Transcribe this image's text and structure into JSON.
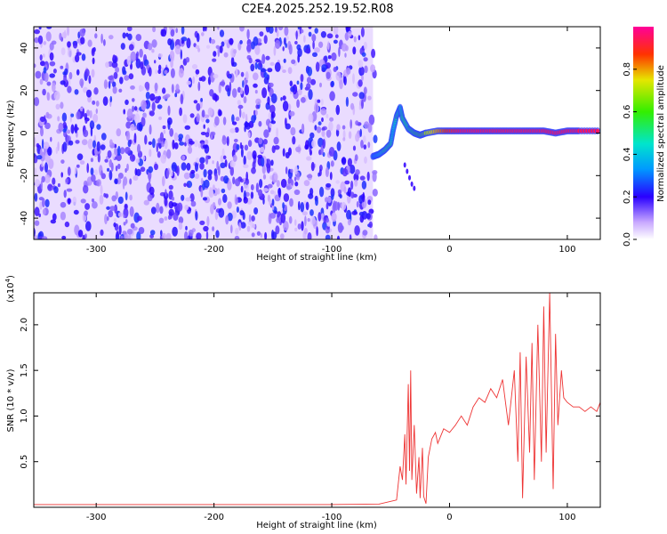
{
  "figure_title": "C2E4.2025.252.19.52.R08",
  "chart_data": [
    {
      "type": "heatmap",
      "xlabel": "Height of straight line (km)",
      "ylabel": "Frequency (Hz)",
      "xlim": [
        -353,
        128
      ],
      "ylim": [
        -50,
        50
      ],
      "xticks": [
        -300,
        -200,
        -100,
        0,
        100
      ],
      "xtick_labels": [
        "-300",
        "-200",
        "-100",
        "0",
        "100"
      ],
      "yticks": [
        -40,
        -20,
        0,
        20,
        40
      ],
      "ytick_labels": [
        "-40",
        "-20",
        "0",
        "20",
        "40"
      ],
      "colorbar": {
        "label": "Normalized spectral amplitude",
        "range": [
          0,
          1
        ],
        "ticks": [
          0.0,
          0.2,
          0.4,
          0.6,
          0.8
        ],
        "tick_labels": [
          "0.0",
          "0.2",
          "0.4",
          "0.6",
          "0.8"
        ]
      },
      "noise_region": {
        "x_start": -353,
        "x_end": -65,
        "amplitude": [
          0.05,
          0.25
        ]
      },
      "signal_trace": {
        "x": [
          -65,
          -60,
          -55,
          -50,
          -48,
          -45,
          -42,
          -40,
          -35,
          -30,
          -25,
          -20,
          -10,
          0,
          10,
          20,
          30,
          40,
          50,
          60,
          70,
          80,
          90,
          100,
          110,
          128
        ],
        "y": [
          -11,
          -10,
          -8,
          -5,
          1,
          8,
          12,
          7,
          2,
          0,
          -1,
          0,
          1,
          1,
          1,
          1,
          1,
          1,
          1,
          1,
          1,
          1,
          0,
          1,
          1,
          1
        ],
        "amplitude": [
          0.3,
          0.4,
          0.5,
          0.5,
          0.4,
          0.5,
          0.45,
          0.5,
          0.5,
          0.55,
          0.6,
          0.7,
          0.8,
          0.9,
          0.95,
          0.95,
          0.95,
          0.95,
          0.95,
          0.95,
          0.95,
          0.95,
          0.95,
          0.95,
          0.95,
          0.95
        ]
      },
      "side_streak": {
        "x": [
          -38,
          -36,
          -34,
          -32,
          -30
        ],
        "y": [
          -15,
          -18,
          -21,
          -24,
          -26
        ]
      }
    },
    {
      "type": "line",
      "xlabel": "Height of straight line (km)",
      "ylabel": "SNR (10 * v/v)",
      "y_scale_label": "(x10",
      "y_scale_exponent": "4",
      "y_scale": 10000,
      "xlim": [
        -353,
        128
      ],
      "ylim": [
        0,
        23500
      ],
      "xticks": [
        -300,
        -200,
        -100,
        0,
        100
      ],
      "xtick_labels": [
        "-300",
        "-200",
        "-100",
        "0",
        "100"
      ],
      "yticks": [
        5000,
        10000,
        15000,
        20000
      ],
      "ytick_labels": [
        "0.5",
        "1.0",
        "1.5",
        "2.0"
      ],
      "color": "#ee3333",
      "series": [
        {
          "x": [
            -353,
            -300,
            -250,
            -200,
            -150,
            -100,
            -60,
            -45,
            -42,
            -40,
            -38,
            -37,
            -35,
            -34,
            -33,
            -32,
            -30,
            -28,
            -26,
            -25,
            -23,
            -22,
            -20,
            -18,
            -15,
            -12,
            -10,
            -5,
            0,
            5,
            10,
            15,
            20,
            25,
            30,
            35,
            40,
            45,
            50,
            55,
            58,
            60,
            62,
            65,
            68,
            70,
            72,
            75,
            78,
            80,
            82,
            85,
            88,
            90,
            92,
            95,
            97,
            100,
            105,
            110,
            115,
            120,
            125,
            128
          ],
          "y": [
            300,
            300,
            300,
            300,
            300,
            300,
            350,
            800,
            4500,
            3000,
            8000,
            2500,
            13500,
            4000,
            15000,
            3000,
            9000,
            1500,
            5500,
            1000,
            6500,
            1200,
            400,
            5500,
            7500,
            8200,
            7000,
            8600,
            8200,
            9000,
            10000,
            9000,
            11000,
            12000,
            11500,
            13000,
            12000,
            14000,
            9000,
            15000,
            5000,
            17000,
            1000,
            16500,
            6000,
            18000,
            3000,
            20000,
            5000,
            22000,
            6000,
            23500,
            2000,
            19000,
            9000,
            15000,
            12000,
            11500,
            11000,
            11000,
            10500,
            11000,
            10500,
            11500
          ]
        }
      ]
    }
  ]
}
